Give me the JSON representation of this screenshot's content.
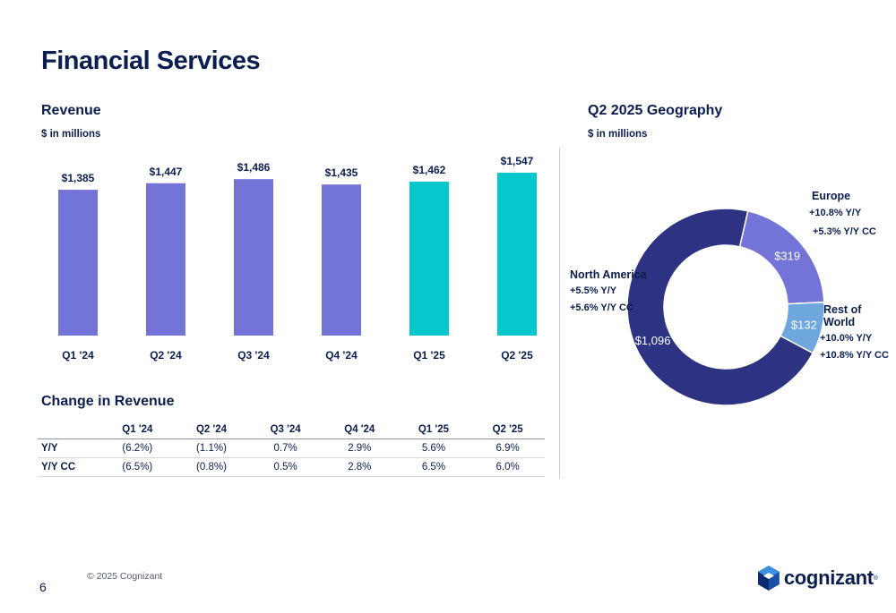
{
  "page": {
    "title": "Financial Services",
    "page_number": "6",
    "copyright": "© 2025 Cognizant",
    "logo_text": "cognizant"
  },
  "revenue": {
    "title": "Revenue",
    "subtitle": "$ in millions"
  },
  "change": {
    "title": "Change in Revenue",
    "columns": [
      "Q1 '24",
      "Q2 '24",
      "Q3 '24",
      "Q4 '24",
      "Q1 '25",
      "Q2 '25"
    ],
    "rows": [
      {
        "label": "Y/Y",
        "values": [
          "(6.2%)",
          "(1.1%)",
          "0.7%",
          "2.9%",
          "5.6%",
          "6.9%"
        ]
      },
      {
        "label": "Y/Y CC",
        "values": [
          "(6.5%)",
          "(0.8%)",
          "0.5%",
          "2.8%",
          "6.5%",
          "6.0%"
        ]
      }
    ]
  },
  "geography": {
    "title": "Q2 2025 Geography",
    "subtitle": "$ in millions",
    "regions": [
      {
        "name": "North America",
        "value_label": "$1,096",
        "yy": "+5.5%  Y/Y",
        "yycc": "+5.6%  Y/Y CC"
      },
      {
        "name": "Europe",
        "value_label": "$319",
        "yy": "+10.8%  Y/Y",
        "yycc": "+5.3%  Y/Y CC"
      },
      {
        "name": "Rest of World",
        "value_label": "$132",
        "yy": "+10.0%  Y/Y",
        "yycc": "+10.8%  Y/Y CC"
      }
    ]
  },
  "colors": {
    "bar_2024": "#7474d8",
    "bar_2025": "#06c7cc",
    "north_america": "#2d3282",
    "europe": "#7373d8",
    "rest_of_world": "#6ea6de",
    "text": "#0b1e4f"
  },
  "chart_data": [
    {
      "type": "bar",
      "title": "Revenue",
      "ylabel": "$ in millions",
      "categories": [
        "Q1 '24",
        "Q2 '24",
        "Q3 '24",
        "Q4 '24",
        "Q1 '25",
        "Q2 '25"
      ],
      "values": [
        1385,
        1447,
        1486,
        1435,
        1462,
        1547
      ],
      "value_labels": [
        "$1,385",
        "$1,447",
        "$1,486",
        "$1,435",
        "$1,462",
        "$1,547"
      ],
      "ylim": [
        0,
        1700
      ],
      "grid": false,
      "legend": "none"
    },
    {
      "type": "pie",
      "title": "Q2 2025 Geography",
      "donut": true,
      "categories": [
        "North America",
        "Europe",
        "Rest of World"
      ],
      "values": [
        1096,
        319,
        132
      ],
      "value_labels": [
        "$1,096",
        "$319",
        "$132"
      ],
      "legend": "none"
    }
  ]
}
